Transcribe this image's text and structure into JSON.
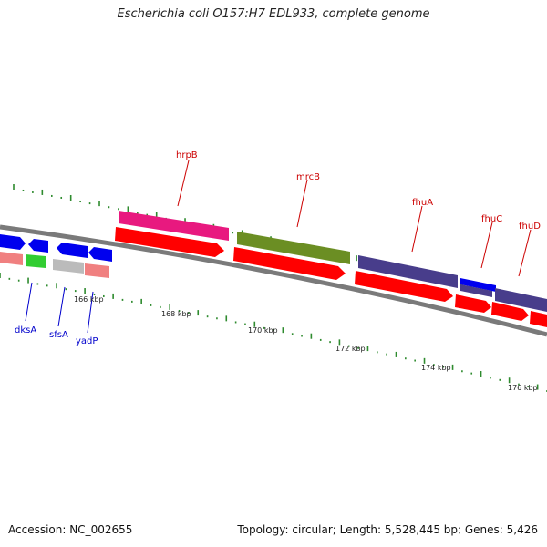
{
  "title": "Escherichia coli O157:H7 EDL933, complete genome",
  "footer": {
    "accession": "Accession: NC_002655",
    "summary": "Topology: circular; Length: 5,528,445 bp; Genes: 5,426"
  },
  "ruler_labels": [
    "166 kbp",
    "168 kbp",
    "170 kbp",
    "172 kbp",
    "174 kbp",
    "176 kbp"
  ],
  "gene_labels": {
    "top": [
      "hrpB",
      "mrcB",
      "fhuA",
      "fhuC",
      "fhuD"
    ],
    "bottom": [
      "dksA",
      "sfsA",
      "yadP"
    ]
  },
  "colors": {
    "backbone": "#808080",
    "cds": "#ff0000",
    "hrpB": "#e8197f",
    "mrcB": "#6b8e23",
    "fhuA": "#483d8b",
    "fhuC": "#0000ee",
    "fhuD": "#483d8b",
    "dksA": "#0000ee",
    "sfsA": "#32cd32",
    "yadP": "#f08080",
    "gray_feature": "#bbbbbb",
    "tick": "#2e8b2e",
    "label_top": "#cc0000",
    "label_bottom": "#0000cc"
  }
}
